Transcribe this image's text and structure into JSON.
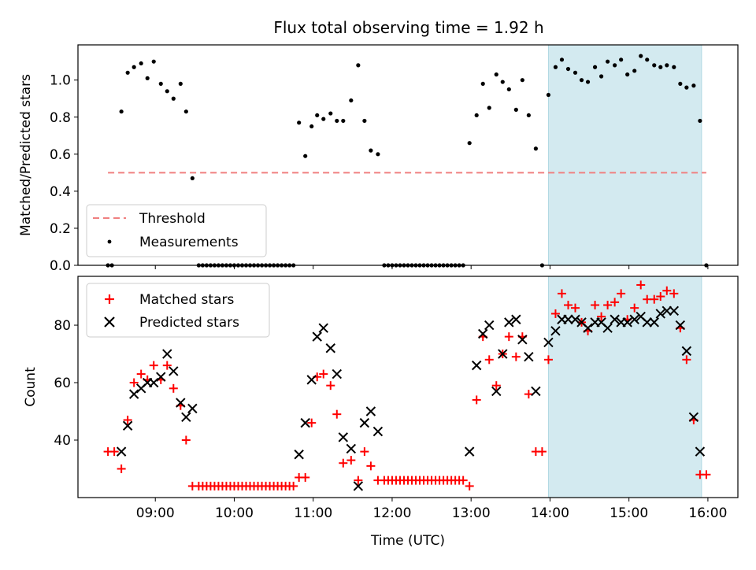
{
  "chart_data": {
    "title": "Flux total observing time = 1.92 h",
    "shared_x": {
      "label": "Time (UTC)",
      "range_hours": [
        8.02,
        16.38
      ],
      "ticks": [
        "09:00",
        "10:00",
        "11:00",
        "12:00",
        "13:00",
        "14:00",
        "15:00",
        "16:00"
      ],
      "tick_values": [
        9,
        10,
        11,
        12,
        13,
        14,
        15,
        16
      ]
    },
    "highlight_window": {
      "x_start": 13.98,
      "x_end": 15.92,
      "color": "#d3eaf0"
    },
    "panels": [
      {
        "type": "scatter",
        "ylabel": "Matched/Predicted stars",
        "ylim": [
          0,
          1.19
        ],
        "yticks": [
          "0.0",
          "0.2",
          "0.4",
          "0.6",
          "0.8",
          "1.0"
        ],
        "ytick_values": [
          0,
          0.2,
          0.4,
          0.6,
          0.8,
          1.0
        ],
        "threshold": {
          "value": 0.5,
          "x_start": 8.4,
          "x_end": 15.98,
          "color": "#f08080"
        },
        "legend": {
          "position": "lower-left",
          "entries": [
            "Threshold",
            "Measurements"
          ]
        },
        "series": [
          {
            "name": "Measurements",
            "color": "#000000",
            "x": [
              8.4,
              8.45,
              8.57,
              8.65,
              8.73,
              8.82,
              8.9,
              8.98,
              9.07,
              9.15,
              9.23,
              9.32,
              9.39,
              9.47,
              9.55,
              9.6,
              9.65,
              9.7,
              9.75,
              9.8,
              9.85,
              9.9,
              9.95,
              10.0,
              10.05,
              10.1,
              10.15,
              10.2,
              10.25,
              10.3,
              10.35,
              10.4,
              10.45,
              10.5,
              10.55,
              10.6,
              10.65,
              10.7,
              10.75,
              10.82,
              10.9,
              10.98,
              11.05,
              11.13,
              11.22,
              11.3,
              11.38,
              11.48,
              11.57,
              11.65,
              11.73,
              11.82,
              11.9,
              11.95,
              12.0,
              12.05,
              12.1,
              12.15,
              12.2,
              12.25,
              12.3,
              12.35,
              12.4,
              12.45,
              12.5,
              12.55,
              12.6,
              12.65,
              12.7,
              12.75,
              12.8,
              12.85,
              12.9,
              12.98,
              13.07,
              13.15,
              13.23,
              13.32,
              13.4,
              13.48,
              13.57,
              13.65,
              13.73,
              13.82,
              13.9,
              13.98,
              14.07,
              14.15,
              14.23,
              14.32,
              14.4,
              14.48,
              14.57,
              14.65,
              14.73,
              14.82,
              14.9,
              14.98,
              15.07,
              15.15,
              15.23,
              15.32,
              15.4,
              15.48,
              15.57,
              15.65,
              15.73,
              15.82,
              15.9,
              15.98
            ],
            "y": [
              0,
              0,
              0.83,
              1.04,
              1.07,
              1.09,
              1.01,
              1.1,
              0.98,
              0.94,
              0.9,
              0.98,
              0.83,
              0.47,
              0,
              0,
              0,
              0,
              0,
              0,
              0,
              0,
              0,
              0,
              0,
              0,
              0,
              0,
              0,
              0,
              0,
              0,
              0,
              0,
              0,
              0,
              0,
              0,
              0,
              0.77,
              0.59,
              0.75,
              0.81,
              0.79,
              0.82,
              0.78,
              0.78,
              0.89,
              1.08,
              0.78,
              0.62,
              0.6,
              0,
              0,
              0,
              0,
              0,
              0,
              0,
              0,
              0,
              0,
              0,
              0,
              0,
              0,
              0,
              0,
              0,
              0,
              0,
              0,
              0,
              0.66,
              0.81,
              0.98,
              0.85,
              1.03,
              0.99,
              0.95,
              0.84,
              1.0,
              0.81,
              0.63,
              0,
              0.92,
              1.07,
              1.11,
              1.06,
              1.04,
              1.0,
              0.99,
              1.07,
              1.02,
              1.1,
              1.08,
              1.11,
              1.03,
              1.05,
              1.13,
              1.11,
              1.08,
              1.07,
              1.08,
              1.07,
              0.98,
              0.96,
              0.97,
              0.78,
              0
            ]
          }
        ]
      },
      {
        "type": "scatter",
        "ylabel": "Count",
        "ylim": [
          20,
          97
        ],
        "yticks": [
          "40",
          "60",
          "80"
        ],
        "ytick_values": [
          40,
          60,
          80
        ],
        "legend": {
          "position": "top-left",
          "entries": [
            "Matched stars",
            "Predicted stars"
          ]
        },
        "series": [
          {
            "name": "Matched stars",
            "marker": "+",
            "color": "#ff0000",
            "x": [
              8.4,
              8.48,
              8.57,
              8.65,
              8.73,
              8.82,
              8.9,
              8.98,
              9.07,
              9.15,
              9.23,
              9.32,
              9.39,
              9.47,
              9.55,
              9.6,
              9.65,
              9.7,
              9.75,
              9.8,
              9.85,
              9.9,
              9.95,
              10.0,
              10.05,
              10.1,
              10.15,
              10.2,
              10.25,
              10.3,
              10.35,
              10.4,
              10.45,
              10.5,
              10.55,
              10.6,
              10.65,
              10.7,
              10.75,
              10.82,
              10.9,
              10.98,
              11.05,
              11.13,
              11.22,
              11.3,
              11.38,
              11.48,
              11.57,
              11.65,
              11.73,
              11.82,
              11.9,
              11.95,
              12.0,
              12.05,
              12.1,
              12.15,
              12.2,
              12.25,
              12.3,
              12.35,
              12.4,
              12.45,
              12.5,
              12.55,
              12.6,
              12.65,
              12.7,
              12.75,
              12.8,
              12.85,
              12.9,
              12.98,
              13.07,
              13.15,
              13.23,
              13.32,
              13.4,
              13.48,
              13.57,
              13.65,
              13.73,
              13.82,
              13.9,
              13.98,
              14.07,
              14.15,
              14.23,
              14.32,
              14.4,
              14.48,
              14.57,
              14.65,
              14.73,
              14.82,
              14.9,
              14.98,
              15.07,
              15.15,
              15.23,
              15.32,
              15.4,
              15.48,
              15.57,
              15.65,
              15.73,
              15.82,
              15.9,
              15.98
            ],
            "y": [
              36,
              36,
              30,
              47,
              60,
              63,
              61,
              66,
              61,
              66,
              58,
              52,
              40,
              24,
              24,
              24,
              24,
              24,
              24,
              24,
              24,
              24,
              24,
              24,
              24,
              24,
              24,
              24,
              24,
              24,
              24,
              24,
              24,
              24,
              24,
              24,
              24,
              24,
              24,
              27,
              27,
              46,
              62,
              63,
              59,
              49,
              32,
              33,
              26,
              36,
              31,
              26,
              26,
              26,
              26,
              26,
              26,
              26,
              26,
              26,
              26,
              26,
              26,
              26,
              26,
              26,
              26,
              26,
              26,
              26,
              26,
              26,
              26,
              24,
              54,
              76,
              68,
              59,
              70,
              76,
              69,
              76,
              56,
              36,
              36,
              68,
              84,
              91,
              87,
              86,
              81,
              78,
              87,
              83,
              87,
              88,
              91,
              82,
              86,
              94,
              89,
              89,
              90,
              92,
              91,
              79,
              68,
              47,
              28,
              28
            ]
          },
          {
            "name": "Predicted stars",
            "marker": "x",
            "color": "#000000",
            "x": [
              8.57,
              8.65,
              8.73,
              8.82,
              8.9,
              8.98,
              9.07,
              9.15,
              9.23,
              9.32,
              9.39,
              9.47,
              10.82,
              10.9,
              10.98,
              11.05,
              11.13,
              11.22,
              11.3,
              11.38,
              11.48,
              11.57,
              11.65,
              11.73,
              11.82,
              12.98,
              13.07,
              13.15,
              13.23,
              13.32,
              13.4,
              13.48,
              13.57,
              13.65,
              13.73,
              13.82,
              13.98,
              14.07,
              14.15,
              14.23,
              14.32,
              14.4,
              14.48,
              14.57,
              14.65,
              14.73,
              14.82,
              14.9,
              14.98,
              15.07,
              15.15,
              15.23,
              15.32,
              15.4,
              15.48,
              15.57,
              15.65,
              15.73,
              15.82,
              15.9
            ],
            "y": [
              36,
              45,
              56,
              58,
              60,
              60,
              62,
              70,
              64,
              53,
              48,
              51,
              35,
              46,
              61,
              76,
              79,
              72,
              63,
              41,
              37,
              24,
              46,
              50,
              43,
              36,
              66,
              77,
              80,
              57,
              70,
              81,
              82,
              75,
              69,
              57,
              74,
              78,
              82,
              82,
              82,
              81,
              79,
              81,
              81,
              79,
              82,
              81,
              81,
              82,
              83,
              81,
              81,
              84,
              85,
              85,
              80,
              71,
              48,
              36
            ]
          }
        ]
      }
    ]
  }
}
